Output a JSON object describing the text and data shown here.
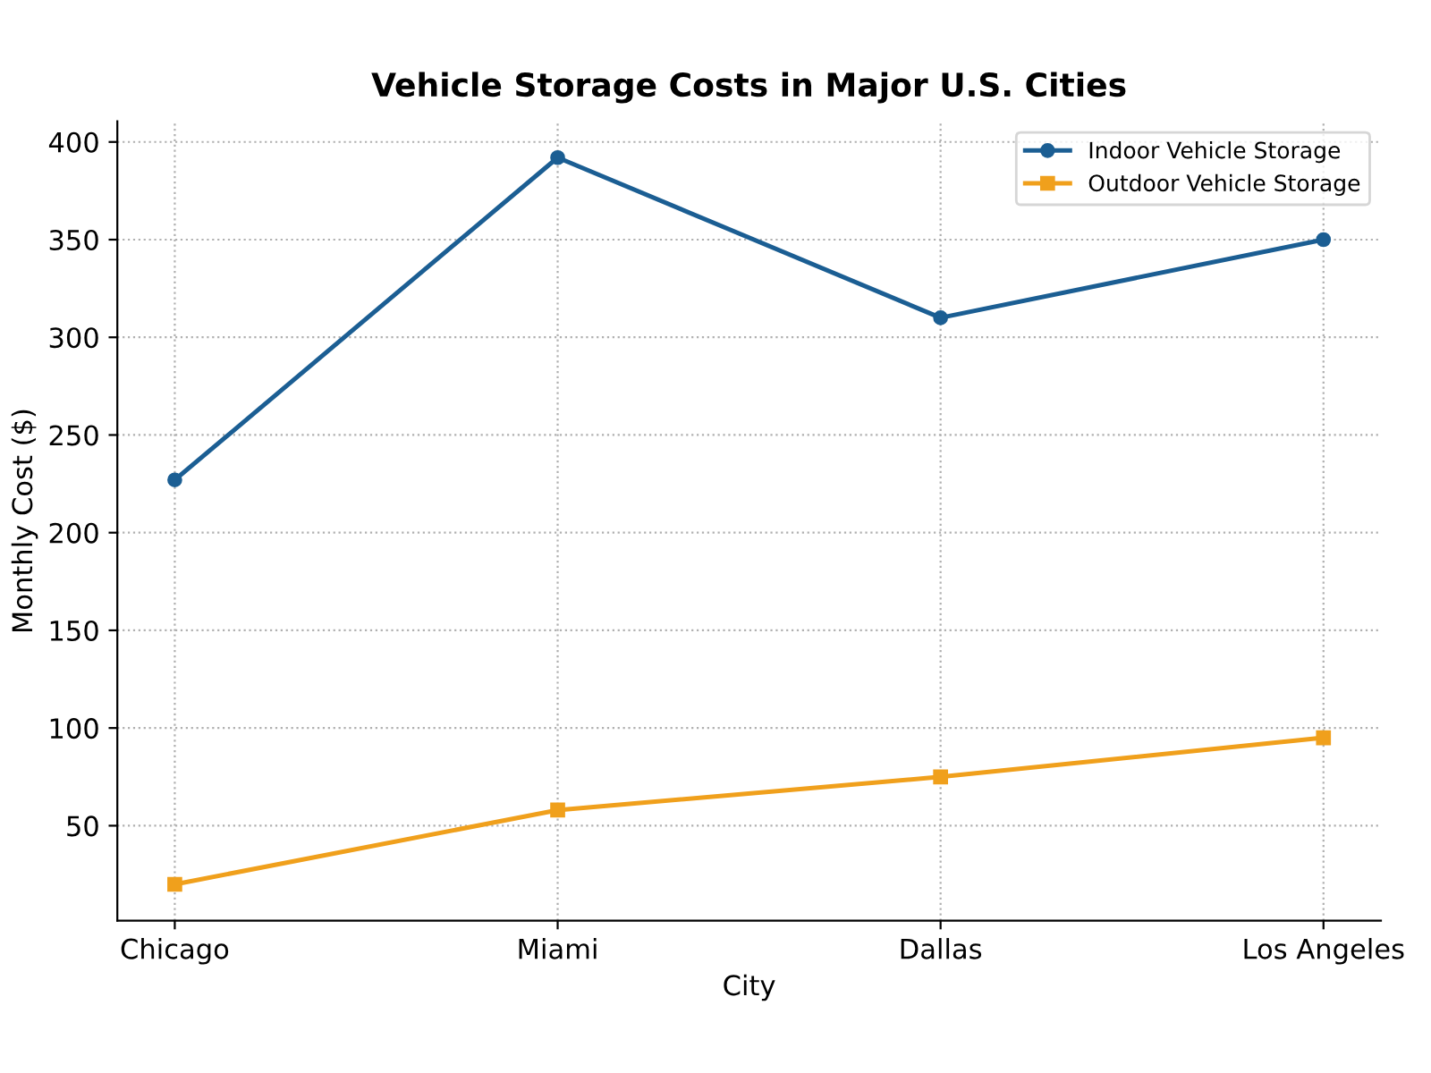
{
  "chart_data": {
    "type": "line",
    "title": "Vehicle Storage Costs in Major U.S. Cities",
    "xlabel": "City",
    "ylabel": "Monthly Cost ($)",
    "categories": [
      "Chicago",
      "Miami",
      "Dallas",
      "Los Angeles"
    ],
    "series": [
      {
        "name": "Indoor Vehicle Storage",
        "color": "#1b5e93",
        "marker": "circle",
        "values": [
          227,
          392,
          310,
          350
        ]
      },
      {
        "name": "Outdoor Vehicle Storage",
        "color": "#f0a01c",
        "marker": "square",
        "values": [
          20,
          58,
          75,
          95
        ]
      }
    ],
    "ylim": [
      1.4,
      410.6
    ],
    "yticks": [
      50,
      100,
      150,
      200,
      250,
      300,
      350,
      400
    ],
    "grid": true,
    "legend": "top right",
    "line_style": "solid"
  }
}
